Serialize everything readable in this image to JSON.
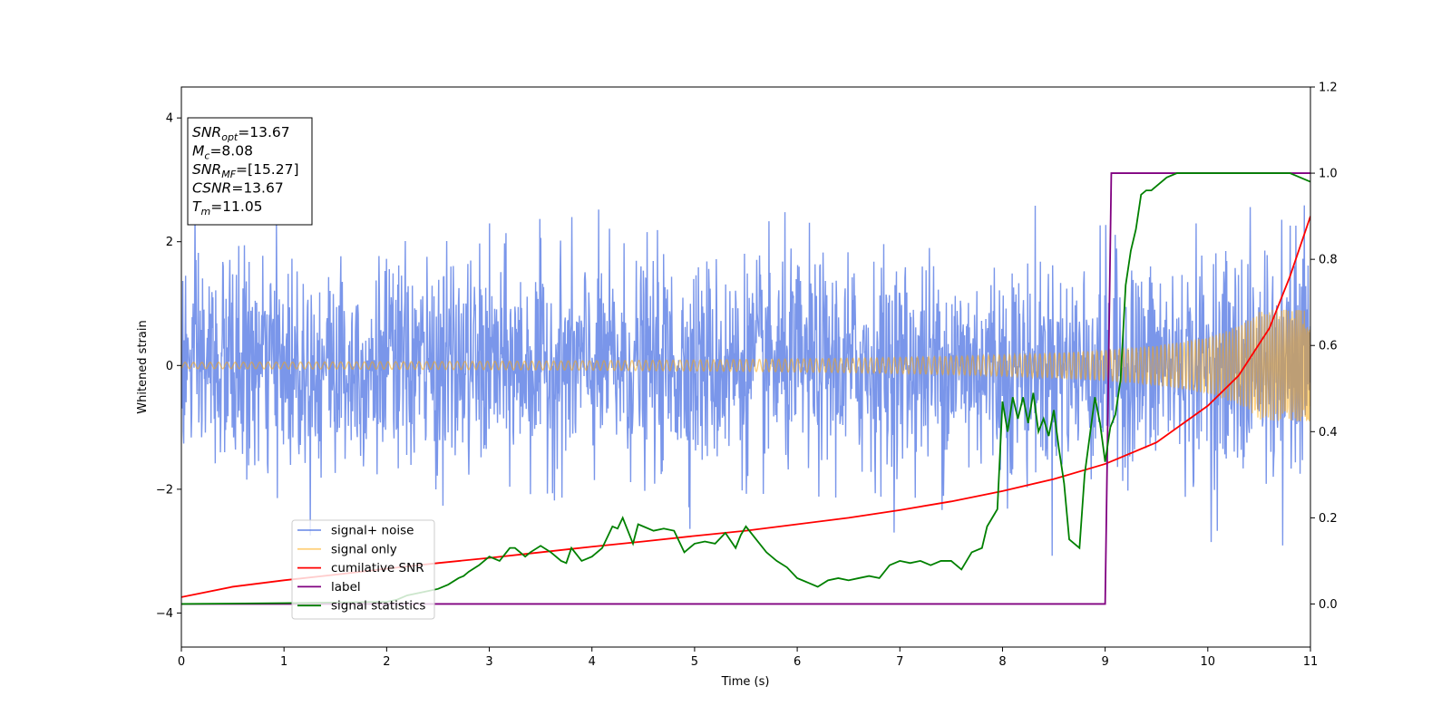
{
  "chart_data": {
    "type": "line",
    "title": "",
    "xlabel": "Time (s)",
    "ylabel_left": "Whitened strain",
    "ylabel_right": "",
    "xlim": [
      0,
      11
    ],
    "ylim_left": [
      -4.55,
      4.5
    ],
    "ylim_right": [
      -0.1,
      1.2
    ],
    "x_ticks": [
      "0",
      "1",
      "2",
      "3",
      "4",
      "5",
      "6",
      "7",
      "8",
      "9",
      "10",
      "11"
    ],
    "y_left_ticks": [
      "4",
      "2",
      "0",
      "−2",
      "−4"
    ],
    "y_right_ticks": [
      "1.2",
      "1.0",
      "0.8",
      "0.6",
      "0.4",
      "0.2",
      "0.0"
    ],
    "grid": false,
    "legend_position": "lower-left",
    "info_box": {
      "lines": [
        {
          "sym": "SNR",
          "sub": "opt",
          "val": "=13.67"
        },
        {
          "sym": "M",
          "sub": "c",
          "val": "=8.08"
        },
        {
          "sym": "SNR",
          "sub": "MF",
          "val": "=[15.27]"
        },
        {
          "sym": "CSNR",
          "sub": "",
          "val": "=13.67"
        },
        {
          "sym": "T",
          "sub": "m",
          "val": "=11.05"
        }
      ]
    },
    "series": [
      {
        "name": "signal+ noise",
        "axis": "left",
        "color": "#4169e1",
        "opacity": 0.7,
        "description_kind": "dense_noise",
        "noise_sigma": 0.85,
        "noise_peak_range": [
          -4.15,
          3.8
        ],
        "dense_points": 2400
      },
      {
        "name": "signal only",
        "axis": "left",
        "color": "#ffa500",
        "opacity": 0.5,
        "description_kind": "chirp",
        "amplitude_start": 0.05,
        "amplitude_end": 0.9,
        "t_merge": 11.05,
        "dense_points": 2600
      },
      {
        "name": "cumilative SNR",
        "axis": "right",
        "color": "#ff0000",
        "x": [
          0,
          0.5,
          1,
          1.5,
          2,
          2.5,
          3,
          3.5,
          4,
          4.5,
          5,
          5.5,
          6,
          6.5,
          7,
          7.5,
          8,
          8.5,
          9,
          9.5,
          10,
          10.3,
          10.6,
          10.8,
          11
        ],
        "y": [
          0.016,
          0.04,
          0.055,
          0.068,
          0.082,
          0.095,
          0.107,
          0.12,
          0.133,
          0.145,
          0.158,
          0.17,
          0.185,
          0.2,
          0.218,
          0.238,
          0.262,
          0.29,
          0.325,
          0.375,
          0.46,
          0.53,
          0.64,
          0.76,
          0.9
        ]
      },
      {
        "name": "label",
        "axis": "right",
        "color": "#800080",
        "x": [
          0,
          9.0,
          9.06,
          11
        ],
        "y": [
          0,
          0,
          1,
          1
        ]
      },
      {
        "name": "signal statistics",
        "axis": "right",
        "color": "#008000",
        "x": [
          0,
          1,
          2,
          2.1,
          2.2,
          2.3,
          2.4,
          2.5,
          2.6,
          2.7,
          2.75,
          2.8,
          2.9,
          3.0,
          3.1,
          3.2,
          3.25,
          3.35,
          3.4,
          3.5,
          3.6,
          3.7,
          3.75,
          3.8,
          3.9,
          4.0,
          4.1,
          4.2,
          4.25,
          4.3,
          4.4,
          4.45,
          4.5,
          4.6,
          4.7,
          4.8,
          4.9,
          5.0,
          5.1,
          5.2,
          5.3,
          5.4,
          5.45,
          5.5,
          5.6,
          5.7,
          5.8,
          5.9,
          6.0,
          6.1,
          6.2,
          6.3,
          6.4,
          6.5,
          6.6,
          6.7,
          6.8,
          6.9,
          7.0,
          7.1,
          7.2,
          7.3,
          7.4,
          7.5,
          7.6,
          7.7,
          7.8,
          7.85,
          7.9,
          7.95,
          8.0,
          8.05,
          8.1,
          8.15,
          8.2,
          8.25,
          8.3,
          8.35,
          8.4,
          8.45,
          8.5,
          8.55,
          8.6,
          8.65,
          8.7,
          8.75,
          8.8,
          8.85,
          8.9,
          8.95,
          9.0,
          9.05,
          9.1,
          9.15,
          9.2,
          9.25,
          9.3,
          9.35,
          9.4,
          9.45,
          9.5,
          9.6,
          9.7,
          9.8,
          9.9,
          10.0,
          10.2,
          10.4,
          10.6,
          10.8,
          10.9,
          11.0
        ],
        "y": [
          0,
          0.002,
          0.005,
          0.01,
          0.02,
          0.025,
          0.03,
          0.035,
          0.045,
          0.06,
          0.065,
          0.075,
          0.09,
          0.11,
          0.1,
          0.13,
          0.13,
          0.11,
          0.12,
          0.135,
          0.12,
          0.1,
          0.095,
          0.13,
          0.1,
          0.11,
          0.13,
          0.18,
          0.175,
          0.2,
          0.14,
          0.185,
          0.18,
          0.17,
          0.175,
          0.17,
          0.12,
          0.14,
          0.145,
          0.14,
          0.165,
          0.13,
          0.16,
          0.18,
          0.15,
          0.12,
          0.1,
          0.085,
          0.06,
          0.05,
          0.04,
          0.055,
          0.06,
          0.055,
          0.06,
          0.065,
          0.06,
          0.09,
          0.1,
          0.095,
          0.1,
          0.09,
          0.1,
          0.1,
          0.08,
          0.12,
          0.13,
          0.18,
          0.2,
          0.22,
          0.47,
          0.4,
          0.48,
          0.43,
          0.48,
          0.42,
          0.49,
          0.4,
          0.43,
          0.39,
          0.45,
          0.36,
          0.28,
          0.15,
          0.14,
          0.13,
          0.3,
          0.39,
          0.48,
          0.42,
          0.33,
          0.41,
          0.44,
          0.52,
          0.74,
          0.82,
          0.87,
          0.95,
          0.96,
          0.96,
          0.97,
          0.99,
          1.0,
          1.0,
          1.0,
          1.0,
          1.0,
          1.0,
          1.0,
          1.0,
          0.99,
          0.98
        ]
      }
    ]
  }
}
